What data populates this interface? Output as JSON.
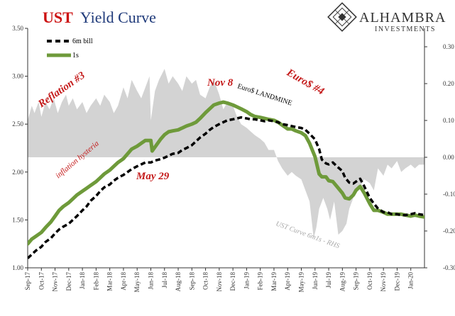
{
  "chart_data": {
    "type": "line",
    "title_part1": "UST",
    "title_part2": "Yield Curve",
    "brand": {
      "name": "ALHAMBRA",
      "subtitle": "INVESTMENTS"
    },
    "colors": {
      "title_red": "#cc1111",
      "title_blue": "#1f3a7a",
      "bill": "#000000",
      "oneyear": "#6e9a3a",
      "spread_area": "#d3d3d3",
      "annotation_red": "#c41a1a",
      "annotation_gray": "#a9a9a9",
      "axis": "#333333"
    },
    "left_axis": {
      "ylim": [
        1.0,
        3.5
      ],
      "ticks": [
        "1.00",
        "1.50",
        "2.00",
        "2.50",
        "3.00",
        "3.50"
      ]
    },
    "right_axis": {
      "ylim": [
        -0.3,
        0.35
      ],
      "ticks": [
        "-0.30",
        "-0.20",
        "-0.10",
        "0.00",
        "0.10",
        "0.20",
        "0.30"
      ]
    },
    "x_labels": [
      "Sep-17",
      "Oct-17",
      "Nov-17",
      "Dec-17",
      "Jan-18",
      "Feb-18",
      "Mar-18",
      "Apr-18",
      "May-18",
      "Jun-18",
      "Jul-18",
      "Aug-18",
      "Sep-18",
      "Oct-18",
      "Nov-18",
      "Dec-18",
      "Jan-19",
      "Feb-19",
      "Mar-19",
      "Apr-19",
      "May-19",
      "Jun-19",
      "Jul-19",
      "Aug-19",
      "Sep-19",
      "Oct-19",
      "Nov-19",
      "Dec-19",
      "Jan-20"
    ],
    "x_range": [
      0,
      29
    ],
    "legend": [
      {
        "name": "6m bill",
        "style": "dashed"
      },
      {
        "name": "1s",
        "style": "solid"
      }
    ],
    "annotations": {
      "reflation": "Reflation #3",
      "inflation_hysteria": "inflation hysteria",
      "may29": "May 29",
      "nov8": "Nov 8",
      "landmine": "Euro$ LANDMINE",
      "euro4": "Euro$ #4",
      "spread_label": "UST Curve 6m1s - RHS"
    },
    "series": [
      {
        "name": "6m bill",
        "points": [
          [
            0,
            1.1
          ],
          [
            0.3,
            1.14
          ],
          [
            0.6,
            1.18
          ],
          [
            1,
            1.22
          ],
          [
            1.3,
            1.27
          ],
          [
            1.7,
            1.31
          ],
          [
            2,
            1.36
          ],
          [
            2.3,
            1.4
          ],
          [
            2.6,
            1.43
          ],
          [
            3,
            1.46
          ],
          [
            3.3,
            1.5
          ],
          [
            3.6,
            1.54
          ],
          [
            4,
            1.6
          ],
          [
            4.3,
            1.64
          ],
          [
            4.6,
            1.7
          ],
          [
            5,
            1.75
          ],
          [
            5.3,
            1.8
          ],
          [
            5.6,
            1.84
          ],
          [
            6,
            1.87
          ],
          [
            6.3,
            1.91
          ],
          [
            6.6,
            1.94
          ],
          [
            7,
            1.97
          ],
          [
            7.3,
            2.0
          ],
          [
            7.6,
            2.03
          ],
          [
            8,
            2.06
          ],
          [
            8.3,
            2.08
          ],
          [
            8.6,
            2.1
          ],
          [
            9,
            2.1
          ],
          [
            9.3,
            2.12
          ],
          [
            9.6,
            2.13
          ],
          [
            10,
            2.15
          ],
          [
            10.3,
            2.17
          ],
          [
            10.6,
            2.19
          ],
          [
            11,
            2.2
          ],
          [
            11.3,
            2.23
          ],
          [
            11.6,
            2.25
          ],
          [
            12,
            2.28
          ],
          [
            12.3,
            2.32
          ],
          [
            12.6,
            2.36
          ],
          [
            13,
            2.4
          ],
          [
            13.3,
            2.44
          ],
          [
            13.6,
            2.47
          ],
          [
            14,
            2.5
          ],
          [
            14.3,
            2.52
          ],
          [
            14.6,
            2.54
          ],
          [
            15,
            2.55
          ],
          [
            15.3,
            2.56
          ],
          [
            15.6,
            2.57
          ],
          [
            16,
            2.56
          ],
          [
            16.3,
            2.55
          ],
          [
            16.6,
            2.55
          ],
          [
            17,
            2.54
          ],
          [
            17.3,
            2.53
          ],
          [
            17.6,
            2.54
          ],
          [
            18,
            2.53
          ],
          [
            18.3,
            2.52
          ],
          [
            18.6,
            2.5
          ],
          [
            19,
            2.49
          ],
          [
            19.3,
            2.48
          ],
          [
            19.6,
            2.47
          ],
          [
            20,
            2.46
          ],
          [
            20.3,
            2.44
          ],
          [
            20.6,
            2.4
          ],
          [
            21,
            2.34
          ],
          [
            21.3,
            2.24
          ],
          [
            21.5,
            2.13
          ],
          [
            21.8,
            2.09
          ],
          [
            22,
            2.08
          ],
          [
            22.3,
            2.1
          ],
          [
            22.6,
            2.06
          ],
          [
            23,
            2.01
          ],
          [
            23.2,
            1.94
          ],
          [
            23.5,
            1.89
          ],
          [
            23.8,
            1.88
          ],
          [
            24,
            1.9
          ],
          [
            24.3,
            1.93
          ],
          [
            24.6,
            1.85
          ],
          [
            25,
            1.73
          ],
          [
            25.3,
            1.67
          ],
          [
            25.6,
            1.62
          ],
          [
            26,
            1.58
          ],
          [
            26.3,
            1.58
          ],
          [
            26.6,
            1.56
          ],
          [
            27,
            1.56
          ],
          [
            27.3,
            1.55
          ],
          [
            27.6,
            1.55
          ],
          [
            28,
            1.56
          ],
          [
            28.3,
            1.57
          ],
          [
            28.6,
            1.56
          ],
          [
            29,
            1.55
          ]
        ]
      },
      {
        "name": "1s",
        "points": [
          [
            0,
            1.25
          ],
          [
            0.3,
            1.3
          ],
          [
            0.6,
            1.33
          ],
          [
            1,
            1.37
          ],
          [
            1.3,
            1.42
          ],
          [
            1.7,
            1.48
          ],
          [
            2,
            1.54
          ],
          [
            2.3,
            1.6
          ],
          [
            2.6,
            1.64
          ],
          [
            3,
            1.68
          ],
          [
            3.3,
            1.72
          ],
          [
            3.6,
            1.76
          ],
          [
            4,
            1.8
          ],
          [
            4.3,
            1.83
          ],
          [
            4.6,
            1.86
          ],
          [
            5,
            1.9
          ],
          [
            5.3,
            1.94
          ],
          [
            5.6,
            1.98
          ],
          [
            6,
            2.02
          ],
          [
            6.3,
            2.06
          ],
          [
            6.6,
            2.1
          ],
          [
            7,
            2.14
          ],
          [
            7.3,
            2.19
          ],
          [
            7.6,
            2.24
          ],
          [
            8,
            2.27
          ],
          [
            8.3,
            2.3
          ],
          [
            8.6,
            2.33
          ],
          [
            9,
            2.33
          ],
          [
            9.1,
            2.22
          ],
          [
            9.4,
            2.28
          ],
          [
            9.7,
            2.34
          ],
          [
            10,
            2.39
          ],
          [
            10.3,
            2.42
          ],
          [
            10.6,
            2.43
          ],
          [
            11,
            2.44
          ],
          [
            11.3,
            2.46
          ],
          [
            11.6,
            2.48
          ],
          [
            12,
            2.5
          ],
          [
            12.3,
            2.52
          ],
          [
            12.6,
            2.56
          ],
          [
            13,
            2.62
          ],
          [
            13.3,
            2.66
          ],
          [
            13.6,
            2.7
          ],
          [
            14,
            2.72
          ],
          [
            14.3,
            2.73
          ],
          [
            14.6,
            2.72
          ],
          [
            15,
            2.7
          ],
          [
            15.3,
            2.68
          ],
          [
            15.6,
            2.66
          ],
          [
            16,
            2.63
          ],
          [
            16.3,
            2.6
          ],
          [
            16.6,
            2.58
          ],
          [
            17,
            2.57
          ],
          [
            17.3,
            2.56
          ],
          [
            17.6,
            2.55
          ],
          [
            18,
            2.54
          ],
          [
            18.3,
            2.52
          ],
          [
            18.6,
            2.49
          ],
          [
            19,
            2.45
          ],
          [
            19.3,
            2.45
          ],
          [
            19.6,
            2.43
          ],
          [
            20,
            2.41
          ],
          [
            20.3,
            2.38
          ],
          [
            20.6,
            2.3
          ],
          [
            21,
            2.16
          ],
          [
            21.3,
            1.98
          ],
          [
            21.5,
            1.95
          ],
          [
            21.8,
            1.95
          ],
          [
            22,
            1.91
          ],
          [
            22.3,
            1.9
          ],
          [
            22.6,
            1.85
          ],
          [
            23,
            1.78
          ],
          [
            23.2,
            1.73
          ],
          [
            23.5,
            1.72
          ],
          [
            23.8,
            1.76
          ],
          [
            24,
            1.81
          ],
          [
            24.3,
            1.85
          ],
          [
            24.6,
            1.78
          ],
          [
            25,
            1.67
          ],
          [
            25.3,
            1.6
          ],
          [
            25.6,
            1.6
          ],
          [
            26,
            1.58
          ],
          [
            26.3,
            1.56
          ],
          [
            26.6,
            1.56
          ],
          [
            27,
            1.56
          ],
          [
            27.3,
            1.56
          ],
          [
            27.6,
            1.55
          ],
          [
            28,
            1.54
          ],
          [
            28.3,
            1.55
          ],
          [
            28.6,
            1.54
          ],
          [
            29,
            1.53
          ]
        ]
      },
      {
        "name": "UST Curve 6m1s - RHS",
        "axis": "right",
        "points": [
          [
            0,
            0.1
          ],
          [
            0.3,
            0.14
          ],
          [
            0.5,
            0.12
          ],
          [
            0.8,
            0.15
          ],
          [
            1,
            0.11
          ],
          [
            1.3,
            0.15
          ],
          [
            1.6,
            0.13
          ],
          [
            1.9,
            0.16
          ],
          [
            2.2,
            0.12
          ],
          [
            2.5,
            0.15
          ],
          [
            2.8,
            0.17
          ],
          [
            3,
            0.14
          ],
          [
            3.3,
            0.16
          ],
          [
            3.6,
            0.13
          ],
          [
            4,
            0.15
          ],
          [
            4.3,
            0.12
          ],
          [
            4.6,
            0.14
          ],
          [
            5,
            0.16
          ],
          [
            5.3,
            0.14
          ],
          [
            5.6,
            0.17
          ],
          [
            6,
            0.15
          ],
          [
            6.3,
            0.12
          ],
          [
            6.6,
            0.14
          ],
          [
            7,
            0.19
          ],
          [
            7.3,
            0.16
          ],
          [
            7.6,
            0.21
          ],
          [
            8,
            0.18
          ],
          [
            8.3,
            0.16
          ],
          [
            8.6,
            0.19
          ],
          [
            8.9,
            0.22
          ],
          [
            9,
            0.1
          ],
          [
            9.3,
            0.18
          ],
          [
            9.6,
            0.21
          ],
          [
            10,
            0.24
          ],
          [
            10.3,
            0.2
          ],
          [
            10.6,
            0.22
          ],
          [
            11,
            0.2
          ],
          [
            11.3,
            0.18
          ],
          [
            11.6,
            0.22
          ],
          [
            12,
            0.2
          ],
          [
            12.3,
            0.21
          ],
          [
            12.6,
            0.17
          ],
          [
            13,
            0.16
          ],
          [
            13.3,
            0.19
          ],
          [
            13.6,
            0.21
          ],
          [
            14,
            0.17
          ],
          [
            14.3,
            0.13
          ],
          [
            14.6,
            0.15
          ],
          [
            15,
            0.14
          ],
          [
            15.3,
            0.11
          ],
          [
            15.6,
            0.09
          ],
          [
            16,
            0.08
          ],
          [
            16.3,
            0.07
          ],
          [
            16.6,
            0.06
          ],
          [
            17,
            0.05
          ],
          [
            17.3,
            0.04
          ],
          [
            17.6,
            0.02
          ],
          [
            18,
            0.02
          ],
          [
            18.3,
            -0.01
          ],
          [
            18.6,
            -0.03
          ],
          [
            19,
            -0.05
          ],
          [
            19.3,
            -0.04
          ],
          [
            19.6,
            -0.05
          ],
          [
            20,
            -0.06
          ],
          [
            20.3,
            -0.09
          ],
          [
            20.6,
            -0.12
          ],
          [
            20.9,
            -0.22
          ],
          [
            21.1,
            -0.19
          ],
          [
            21.3,
            -0.14
          ],
          [
            21.6,
            -0.11
          ],
          [
            21.9,
            -0.14
          ],
          [
            22.1,
            -0.17
          ],
          [
            22.4,
            -0.12
          ],
          [
            22.7,
            -0.21
          ],
          [
            23,
            -0.2
          ],
          [
            23.3,
            -0.18
          ],
          [
            23.5,
            -0.14
          ],
          [
            23.8,
            -0.11
          ],
          [
            24,
            -0.09
          ],
          [
            24.3,
            -0.08
          ],
          [
            24.6,
            -0.06
          ],
          [
            25,
            -0.07
          ],
          [
            25.3,
            -0.09
          ],
          [
            25.6,
            -0.03
          ],
          [
            26,
            -0.05
          ],
          [
            26.3,
            -0.02
          ],
          [
            26.6,
            -0.03
          ],
          [
            27,
            -0.01
          ],
          [
            27.3,
            -0.04
          ],
          [
            27.6,
            -0.03
          ],
          [
            28,
            -0.02
          ],
          [
            28.3,
            -0.03
          ],
          [
            28.6,
            -0.02
          ],
          [
            29,
            -0.02
          ]
        ]
      }
    ]
  }
}
